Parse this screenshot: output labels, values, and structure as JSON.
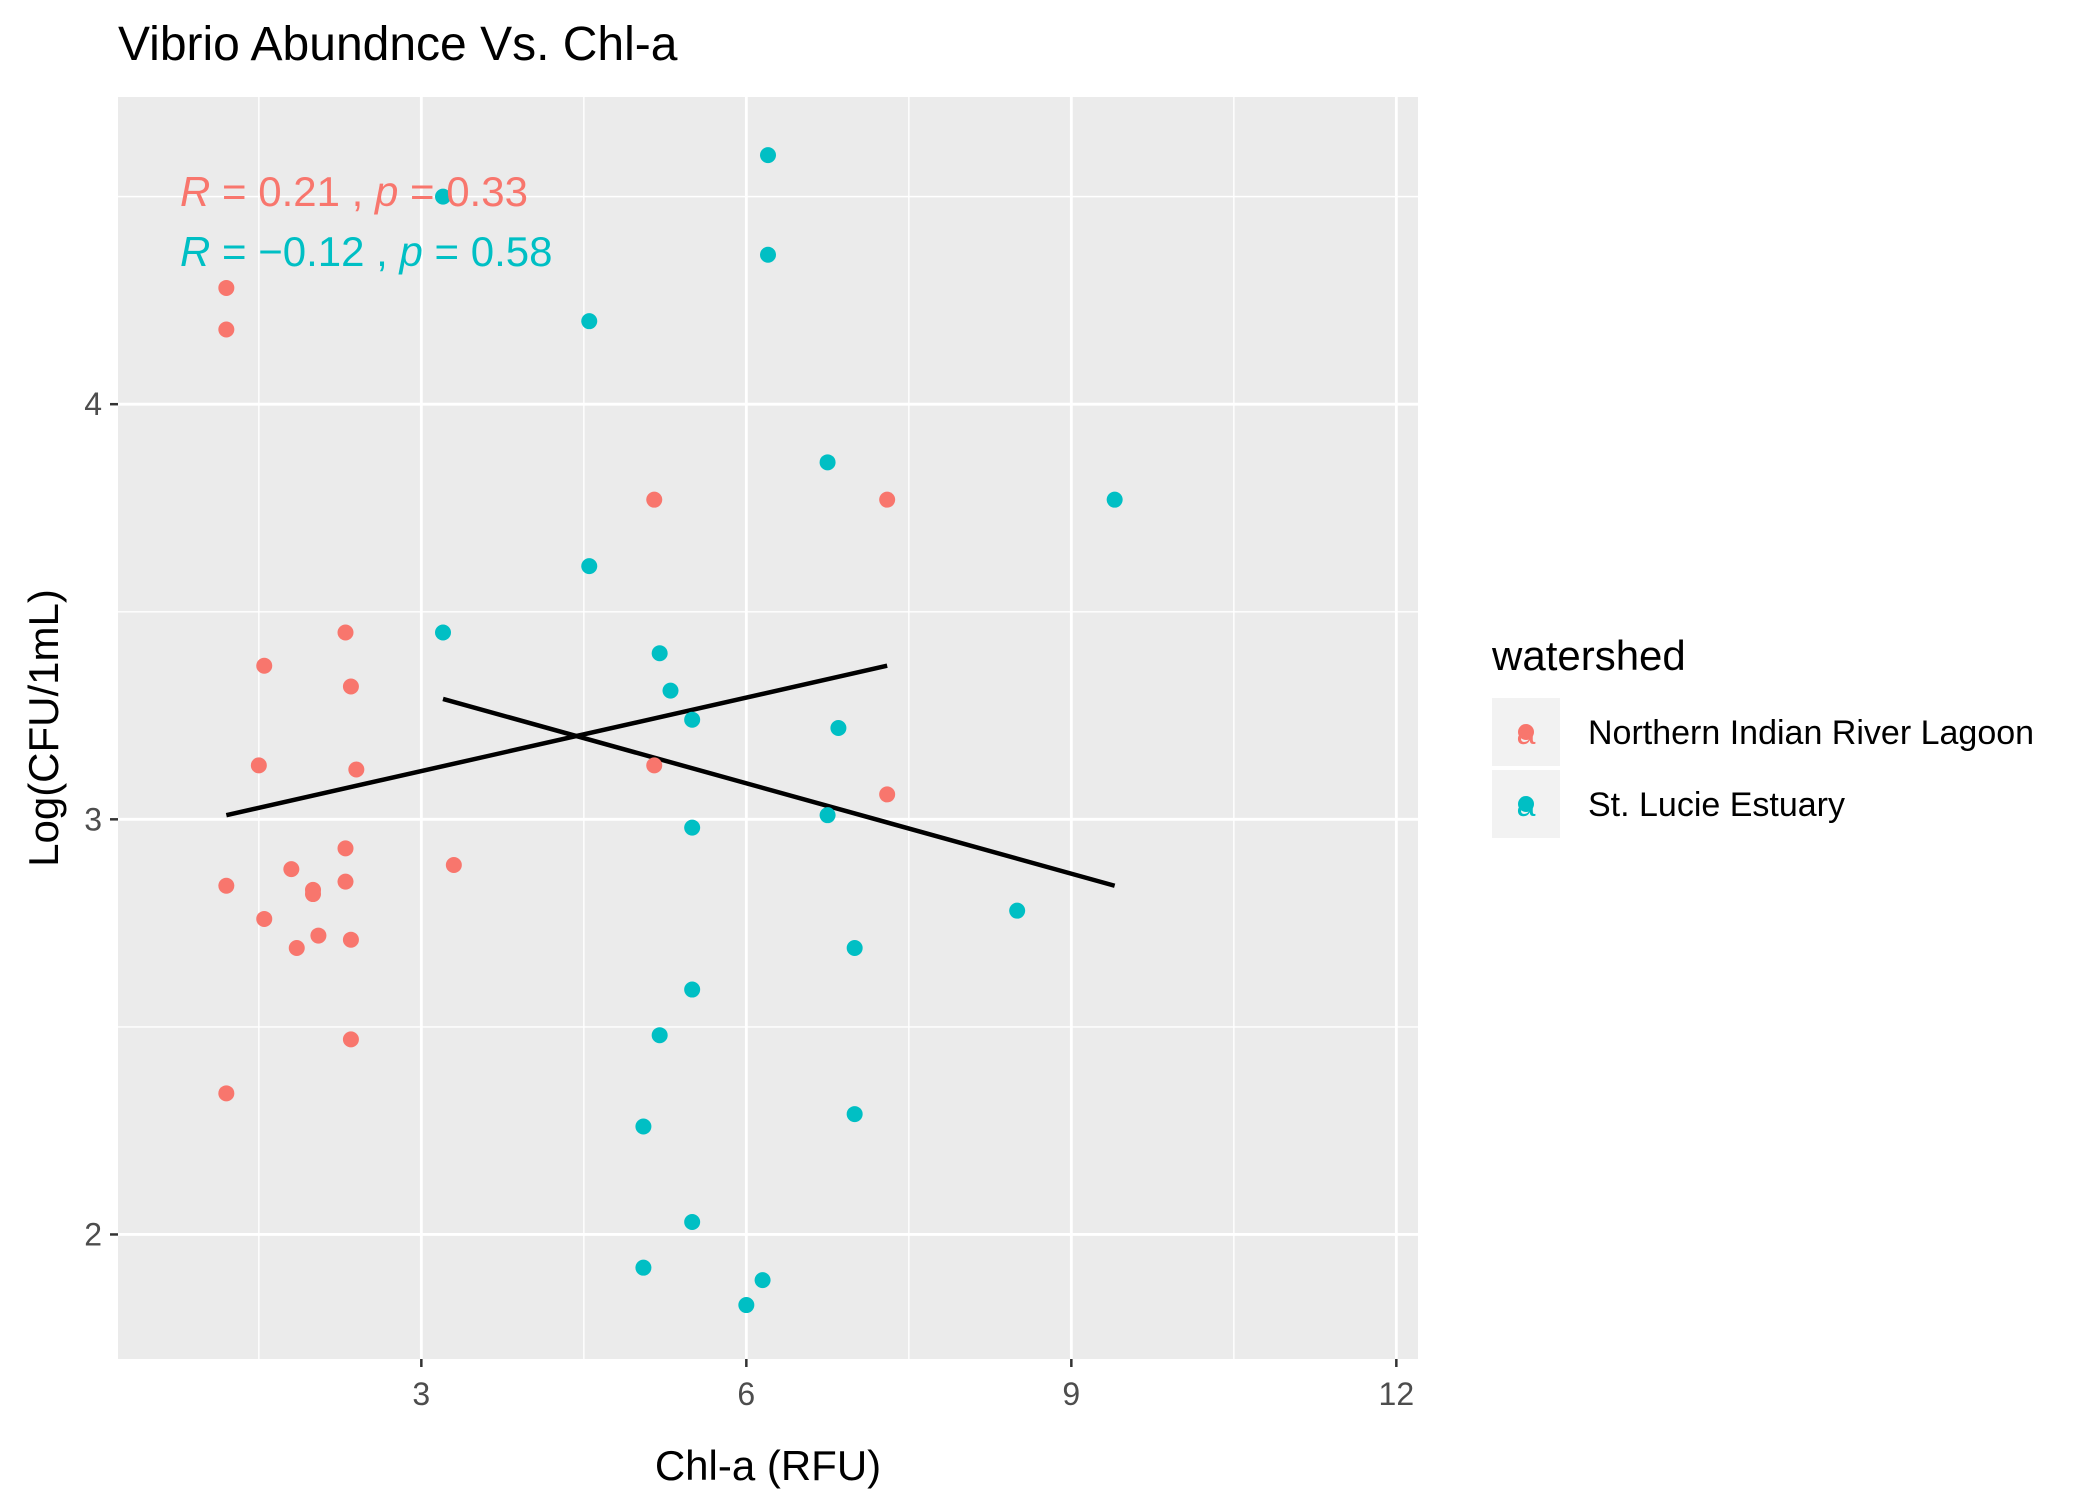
{
  "chart_data": {
    "type": "scatter",
    "title": "Vibrio Abundnce Vs. Chl-a",
    "xlabel": "Chl-a (RFU)",
    "ylabel": "Log(CFU/1mL)",
    "xlim": [
      0.2,
      12.2
    ],
    "ylim": [
      1.7,
      4.74
    ],
    "x_ticks": [
      3,
      6,
      9,
      12
    ],
    "y_ticks": [
      2,
      3,
      4
    ],
    "grid": true,
    "legend": {
      "title": "watershed",
      "position": "right",
      "key_glyph": "a"
    },
    "series": [
      {
        "name": "Northern Indian River Lagoon",
        "color": "#F8766D",
        "annotation": {
          "r_symbol": "R",
          "r_value": " = 0.21 , ",
          "p_symbol": "p",
          "p_value": " = 0.33"
        },
        "points": [
          {
            "x": 1.2,
            "y": 4.28
          },
          {
            "x": 1.2,
            "y": 4.18
          },
          {
            "x": 1.55,
            "y": 3.37
          },
          {
            "x": 1.5,
            "y": 3.13
          },
          {
            "x": 2.3,
            "y": 3.45
          },
          {
            "x": 2.35,
            "y": 3.32
          },
          {
            "x": 2.4,
            "y": 3.12
          },
          {
            "x": 2.3,
            "y": 2.93
          },
          {
            "x": 1.8,
            "y": 2.88
          },
          {
            "x": 2.3,
            "y": 2.85
          },
          {
            "x": 2.0,
            "y": 2.82
          },
          {
            "x": 2.0,
            "y": 2.83
          },
          {
            "x": 1.2,
            "y": 2.84
          },
          {
            "x": 1.55,
            "y": 2.76
          },
          {
            "x": 2.05,
            "y": 2.72
          },
          {
            "x": 2.35,
            "y": 2.71
          },
          {
            "x": 1.85,
            "y": 2.69
          },
          {
            "x": 2.35,
            "y": 2.47
          },
          {
            "x": 1.2,
            "y": 2.34
          },
          {
            "x": 3.3,
            "y": 2.89
          },
          {
            "x": 5.15,
            "y": 3.77
          },
          {
            "x": 5.15,
            "y": 3.13
          },
          {
            "x": 7.3,
            "y": 3.77
          },
          {
            "x": 7.3,
            "y": 3.06
          }
        ],
        "fit": {
          "x": [
            1.2,
            7.3
          ],
          "y": [
            3.01,
            3.37
          ]
        }
      },
      {
        "name": "St. Lucie Estuary",
        "color": "#00BFC4",
        "annotation": {
          "r_symbol": "R",
          "r_value": " = −0.12 , ",
          "p_symbol": "p",
          "p_value": " = 0.58"
        },
        "points": [
          {
            "x": 6.2,
            "y": 4.6
          },
          {
            "x": 3.2,
            "y": 4.5
          },
          {
            "x": 6.2,
            "y": 4.36
          },
          {
            "x": 4.55,
            "y": 4.2
          },
          {
            "x": 6.75,
            "y": 3.86
          },
          {
            "x": 9.4,
            "y": 3.77
          },
          {
            "x": 4.55,
            "y": 3.61
          },
          {
            "x": 3.2,
            "y": 3.45
          },
          {
            "x": 5.2,
            "y": 3.4
          },
          {
            "x": 5.3,
            "y": 3.31
          },
          {
            "x": 5.5,
            "y": 3.24
          },
          {
            "x": 6.85,
            "y": 3.22
          },
          {
            "x": 6.75,
            "y": 3.01
          },
          {
            "x": 5.5,
            "y": 2.98
          },
          {
            "x": 8.5,
            "y": 2.78
          },
          {
            "x": 7.0,
            "y": 2.69
          },
          {
            "x": 5.5,
            "y": 2.59
          },
          {
            "x": 5.2,
            "y": 2.48
          },
          {
            "x": 7.0,
            "y": 2.29
          },
          {
            "x": 5.05,
            "y": 2.26
          },
          {
            "x": 5.5,
            "y": 2.03
          },
          {
            "x": 5.05,
            "y": 1.92
          },
          {
            "x": 6.15,
            "y": 1.89
          },
          {
            "x": 6.0,
            "y": 1.83
          }
        ],
        "fit": {
          "x": [
            3.2,
            9.4
          ],
          "y": [
            3.29,
            2.84
          ]
        }
      }
    ]
  }
}
